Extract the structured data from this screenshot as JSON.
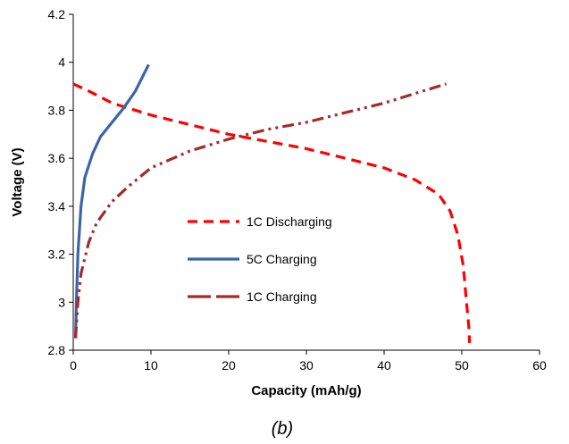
{
  "chart_data": {
    "type": "line",
    "title": "",
    "caption": "(b)",
    "xlabel": "Capacity (mAh/g)",
    "ylabel": "Voltage (V)",
    "xlim": [
      0,
      60
    ],
    "ylim": [
      2.8,
      4.2
    ],
    "xticks": [
      "0",
      "10",
      "20",
      "30",
      "40",
      "50",
      "60"
    ],
    "yticks": [
      "2.8",
      "3",
      "3.2",
      "3.4",
      "3.6",
      "3.8",
      "4",
      "4.2"
    ],
    "grid": false,
    "legend_position": "center-left",
    "series": [
      {
        "name": "1C Discharging",
        "color": "#ff0000",
        "dash": "dash",
        "points": [
          [
            0,
            3.91
          ],
          [
            2,
            3.88
          ],
          [
            5,
            3.83
          ],
          [
            10,
            3.78
          ],
          [
            15,
            3.74
          ],
          [
            20,
            3.7
          ],
          [
            25,
            3.67
          ],
          [
            30,
            3.64
          ],
          [
            35,
            3.6
          ],
          [
            40,
            3.56
          ],
          [
            44,
            3.51
          ],
          [
            47,
            3.45
          ],
          [
            48.5,
            3.38
          ],
          [
            49.5,
            3.28
          ],
          [
            50.2,
            3.15
          ],
          [
            50.6,
            3.0
          ],
          [
            50.9,
            2.9
          ],
          [
            51,
            2.83
          ]
        ]
      },
      {
        "name": "5C Charging",
        "color": "#3a66a8",
        "dash": "solid",
        "points": [
          [
            0.3,
            2.85
          ],
          [
            0.4,
            3.0
          ],
          [
            0.6,
            3.2
          ],
          [
            1,
            3.4
          ],
          [
            1.5,
            3.52
          ],
          [
            2.5,
            3.62
          ],
          [
            3.5,
            3.69
          ],
          [
            5,
            3.75
          ],
          [
            6.5,
            3.81
          ],
          [
            8,
            3.88
          ],
          [
            9.7,
            3.99
          ]
        ]
      },
      {
        "name": "1C Charging",
        "color": "#a52a2a",
        "dash": "dash-dot-dot",
        "points": [
          [
            0.3,
            2.85
          ],
          [
            0.6,
            3.0
          ],
          [
            1,
            3.12
          ],
          [
            2,
            3.25
          ],
          [
            3,
            3.33
          ],
          [
            5,
            3.42
          ],
          [
            7,
            3.48
          ],
          [
            10,
            3.56
          ],
          [
            15,
            3.63
          ],
          [
            20,
            3.68
          ],
          [
            25,
            3.72
          ],
          [
            30,
            3.75
          ],
          [
            35,
            3.79
          ],
          [
            40,
            3.83
          ],
          [
            45,
            3.88
          ],
          [
            48,
            3.91
          ]
        ]
      }
    ]
  }
}
